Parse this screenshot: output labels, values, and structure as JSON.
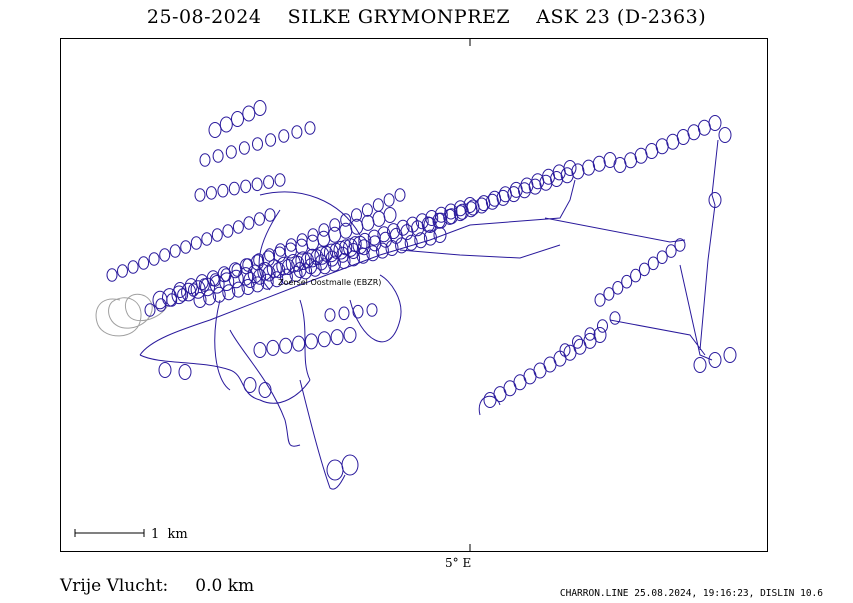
{
  "header": {
    "title": "25-08-2024    SILKE GRYMONPREZ    ASK 23 (D-2363)"
  },
  "map": {
    "meridian_label": "5° E",
    "scale_label": "1  km",
    "track_color": "#2a1a9c",
    "tow_color": "#a0a0a0",
    "airfield_label": "Zoersel Oostmalle (EBZR)"
  },
  "summary": {
    "distance_text": "Vrije Vlucht:     0.0 km"
  },
  "footer": {
    "credit": "CHARRON.LINE 25.08.2024, 19:16:23, DISLIN 10.6"
  }
}
